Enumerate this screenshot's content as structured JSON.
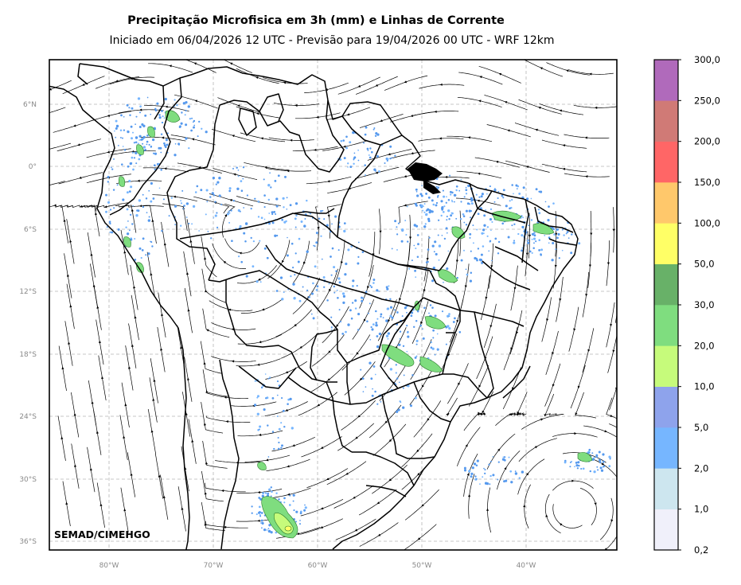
{
  "title": "Precipitação Microfisica em 3h (mm) e Linhas de Corrente",
  "subtitle": "Iniciado em 06/04/2026 12 UTC - Previsão para 19/04/2026 00 UTC - WRF 12km",
  "credit": "SEMAD/CIMEHGO",
  "lat_labels": [
    "6°N",
    "0°",
    "6°S",
    "12°S",
    "18°S",
    "24°S",
    "30°S",
    "36°S"
  ],
  "lon_labels": [
    "80°W",
    "70°W",
    "60°W",
    "50°W",
    "40°W"
  ],
  "colorbar": {
    "labels": [
      "0,2",
      "1,0",
      "2,0",
      "5,0",
      "10,0",
      "20,0",
      "30,0",
      "50,0",
      "100,0",
      "150,0",
      "200,0",
      "250,0",
      "300,0"
    ],
    "colors": [
      "#f0f0fa",
      "#cde6ef",
      "#76b6ff",
      "#8ea3ec",
      "#c6fb7b",
      "#7fdd7f",
      "#68b168",
      "#ffff66",
      "#ffc86b",
      "#ff6666",
      "#d07a76",
      "#b06abb"
    ]
  },
  "colors": {
    "frame": "#000000",
    "grid": "#b5b5b5",
    "streamline": "#000000",
    "rain": "#5599ee"
  }
}
